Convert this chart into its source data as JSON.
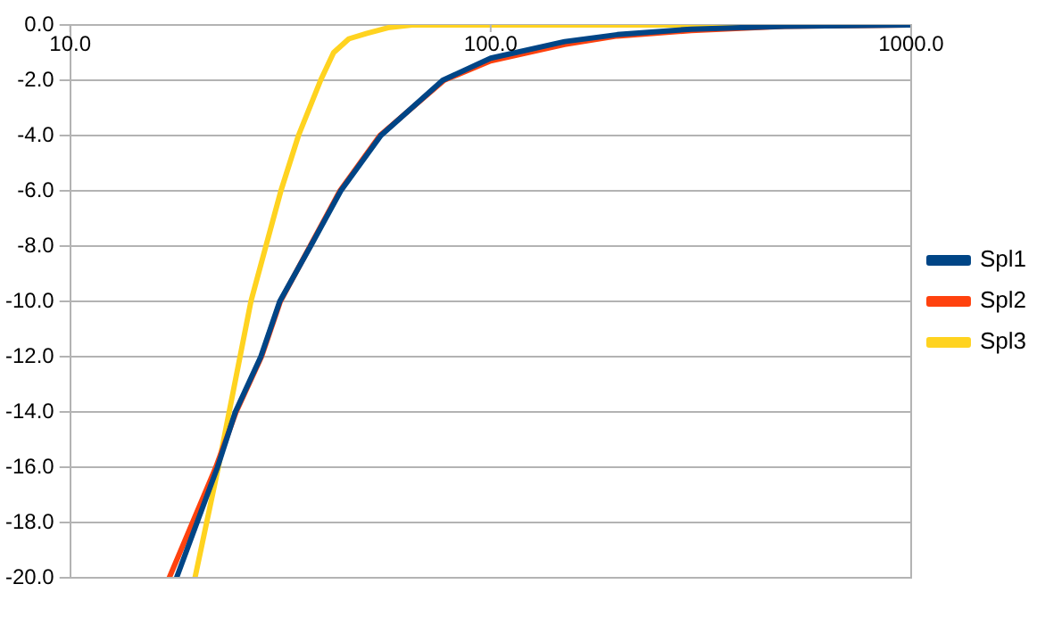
{
  "chart_data": {
    "type": "line",
    "log": "x",
    "xlim": [
      10,
      1000
    ],
    "xticks": [
      {
        "value": 10,
        "label": "10.0"
      },
      {
        "value": 100,
        "label": "100.0"
      },
      {
        "value": 1000,
        "label": "1000.0"
      }
    ],
    "ylim": [
      -20,
      0
    ],
    "yticks": [
      {
        "value": -20,
        "label": "-20.0"
      },
      {
        "value": -18,
        "label": "-18.0"
      },
      {
        "value": -16,
        "label": "-16.0"
      },
      {
        "value": -14,
        "label": "-14.0"
      },
      {
        "value": -12,
        "label": "-12.0"
      },
      {
        "value": -10,
        "label": "-10.0"
      },
      {
        "value": -8,
        "label": "-8.0"
      },
      {
        "value": -6,
        "label": "-6.0"
      },
      {
        "value": -4,
        "label": "-4.0"
      },
      {
        "value": -2,
        "label": "-2.0"
      },
      {
        "value": 0,
        "label": "0.0"
      }
    ],
    "grid": "y",
    "legend": "right",
    "marker": "none",
    "line_style": "solid",
    "series": [
      {
        "name": "Spl1",
        "color": "#004586",
        "x": [
          17.9,
          22.4,
          24.7,
          28.4,
          31.5,
          37.3,
          44,
          54.8,
          76.9,
          100,
          150,
          200,
          300,
          500,
          1000
        ],
        "values": [
          -20,
          -16,
          -14,
          -12,
          -10,
          -8,
          -6,
          -4,
          -2,
          -1.2,
          -0.6,
          -0.35,
          -0.15,
          -0.05,
          0
        ]
      },
      {
        "name": "Spl2",
        "color": "#ff420e",
        "x": [
          17.2,
          22.2,
          24.8,
          28.5,
          31.6,
          37.2,
          43.8,
          54.5,
          77.5,
          100,
          150,
          200,
          300,
          500,
          1000
        ],
        "values": [
          -20,
          -16,
          -14,
          -12,
          -10,
          -8,
          -6,
          -4,
          -2,
          -1.3,
          -0.7,
          -0.4,
          -0.2,
          -0.05,
          0
        ]
      },
      {
        "name": "Spl3",
        "color": "#ffd320",
        "x": [
          19.8,
          22.5,
          26.9,
          29.2,
          31.7,
          34.9,
          39.4,
          42.3,
          46,
          50.8,
          57,
          65,
          100,
          1000
        ],
        "values": [
          -20,
          -16,
          -10,
          -8,
          -6,
          -4,
          -2,
          -1,
          -0.5,
          -0.3,
          -0.1,
          0,
          0,
          0
        ]
      }
    ]
  }
}
